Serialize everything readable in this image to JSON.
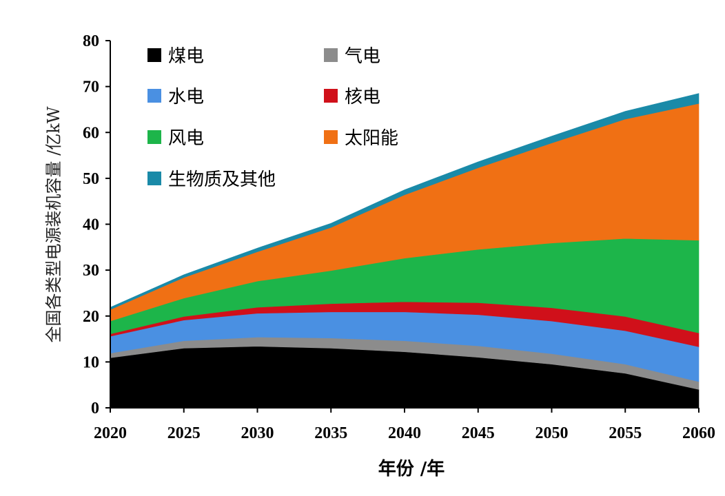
{
  "chart_data": {
    "type": "stacked-area",
    "title": "",
    "xlabel": "年份 /年",
    "ylabel": "全国各类型电源装机容量 /亿kW",
    "xlim": [
      2020,
      2060
    ],
    "ylim": [
      0,
      80
    ],
    "x": [
      2020,
      2025,
      2030,
      2035,
      2040,
      2045,
      2050,
      2055,
      2060
    ],
    "xticks": [
      "2020",
      "2025",
      "2030",
      "2035",
      "2040",
      "2045",
      "2050",
      "2055",
      "2060"
    ],
    "yticks": [
      "0",
      "10",
      "20",
      "30",
      "40",
      "50",
      "60",
      "70",
      "80"
    ],
    "legend_position": "top-left, inside",
    "series": [
      {
        "name": "煤电",
        "color": "#000000",
        "values": [
          10.9,
          13.0,
          13.4,
          13.0,
          12.2,
          11.0,
          9.5,
          7.5,
          4.0
        ]
      },
      {
        "name": "气电",
        "color": "#8c8c8c",
        "values": [
          1.0,
          1.6,
          2.0,
          2.2,
          2.4,
          2.5,
          2.3,
          2.0,
          1.7
        ]
      },
      {
        "name": "水电",
        "color": "#4a90e2",
        "values": [
          3.7,
          4.5,
          5.2,
          5.7,
          6.3,
          6.8,
          7.1,
          7.3,
          7.6
        ]
      },
      {
        "name": "核电",
        "color": "#d0101a",
        "values": [
          0.5,
          0.8,
          1.3,
          1.8,
          2.2,
          2.6,
          2.9,
          3.1,
          3.0
        ]
      },
      {
        "name": "风电",
        "color": "#1db54a",
        "values": [
          2.8,
          4.0,
          5.7,
          7.2,
          9.5,
          11.6,
          14.1,
          17.0,
          20.2
        ]
      },
      {
        "name": "太阳能",
        "color": "#f07014",
        "values": [
          2.5,
          4.5,
          6.4,
          9.4,
          13.8,
          17.8,
          21.8,
          26.0,
          29.8
        ]
      },
      {
        "name": "生物质及其他",
        "color": "#1a8aa8",
        "values": [
          0.5,
          0.6,
          0.8,
          0.9,
          1.1,
          1.3,
          1.5,
          1.7,
          2.2
        ]
      }
    ]
  }
}
